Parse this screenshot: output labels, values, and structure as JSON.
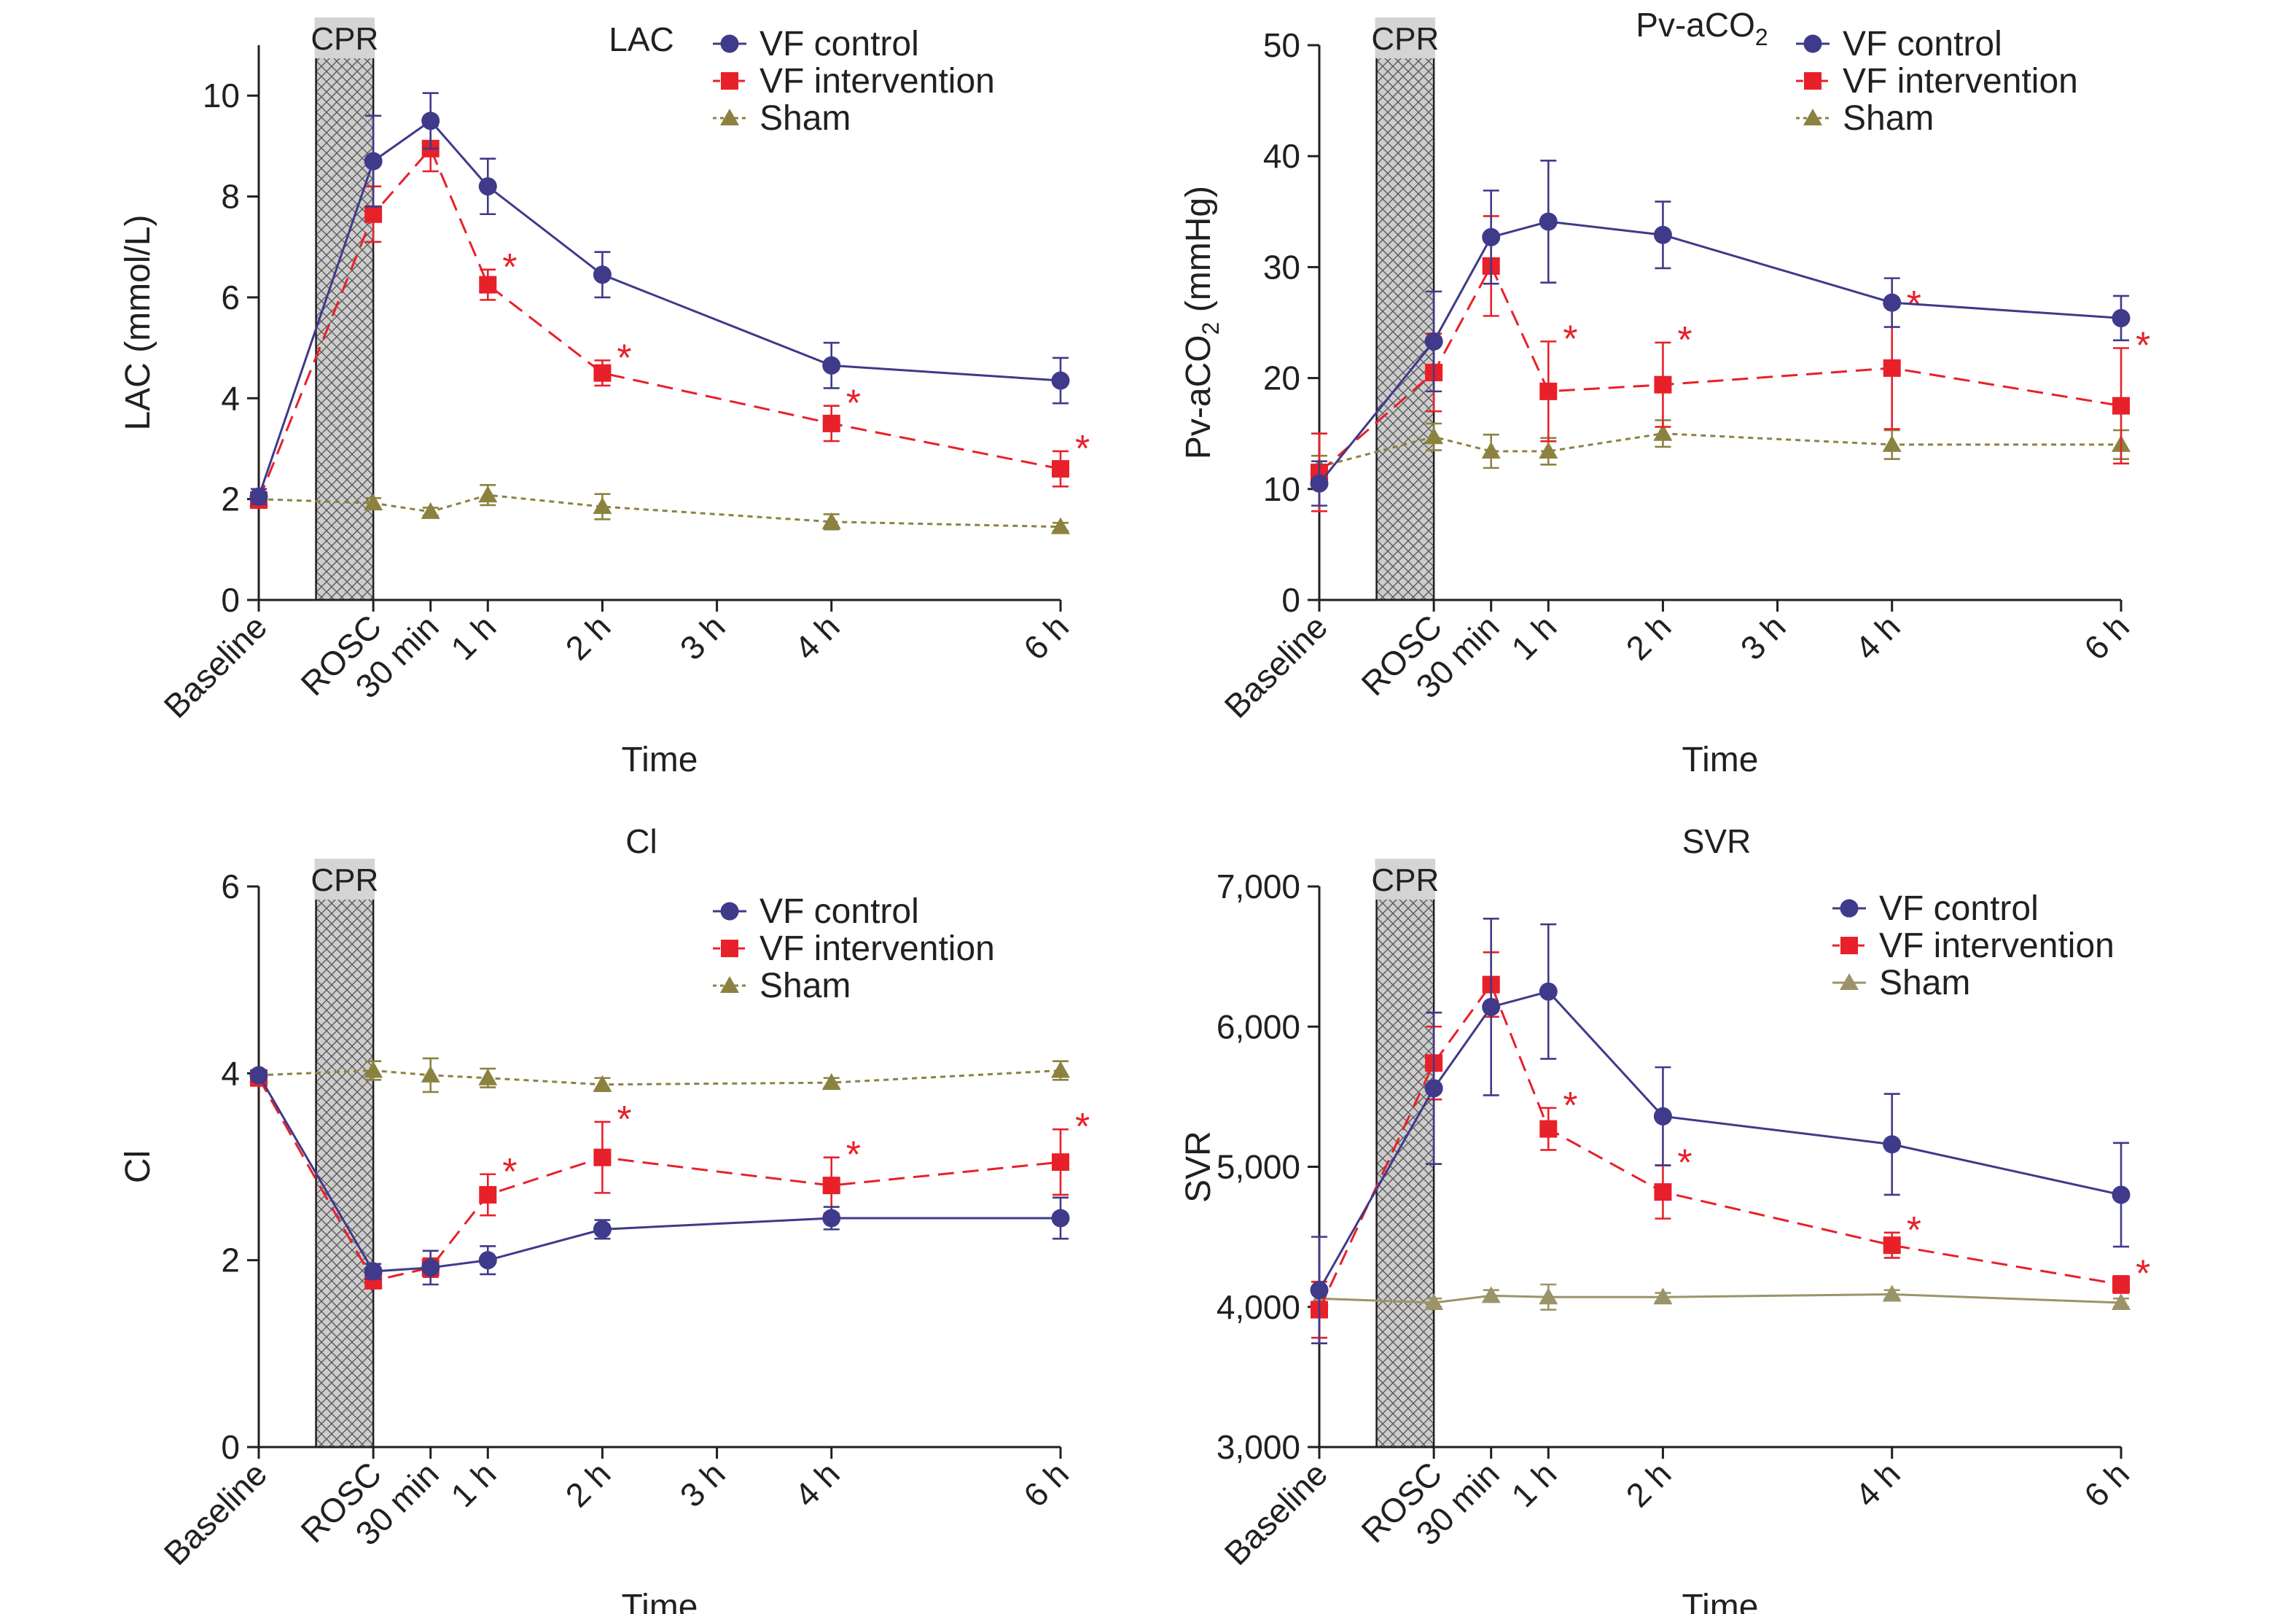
{
  "figure": {
    "colors": {
      "VF control": "#3f3a8a",
      "VF intervention": "#e8202a",
      "Sham": "#8c8240",
      "Sham_svr": "#9b946a",
      "axis": "#231f20",
      "cpr_fill": "#c8c8c8",
      "cpr_label_bg": "#d4d4d4"
    },
    "cpr_label": "CPR",
    "xlabel": "Time"
  },
  "chart_data": [
    {
      "type": "line",
      "title": "LAC",
      "ylabel": "LAC (mmol/L)",
      "xlabel": "Time",
      "ylim": [
        0,
        11
      ],
      "yticks": [
        0,
        2,
        4,
        6,
        8,
        10
      ],
      "ytick_labels": [
        "0",
        "2",
        "4",
        "6",
        "8",
        "10"
      ],
      "x_categories": [
        "Baseline",
        "ROSC",
        "30 min",
        "1 h",
        "2 h",
        "3 h",
        "4 h",
        "6 h"
      ],
      "x_positions_hours": [
        -1,
        0,
        0.5,
        1,
        2,
        3,
        4,
        6
      ],
      "cpr_period": [
        -0.5,
        0
      ],
      "legend": "top-right",
      "series": [
        {
          "name": "VF control",
          "marker": "circle",
          "line": "solid",
          "x": [
            "Baseline",
            "ROSC",
            "30 min",
            "1 h",
            "2 h",
            "4 h",
            "6 h"
          ],
          "y": [
            2.05,
            8.7,
            9.5,
            8.2,
            6.45,
            4.65,
            4.35
          ],
          "err": [
            0.15,
            0.9,
            0.55,
            0.55,
            0.45,
            0.45,
            0.45
          ]
        },
        {
          "name": "VF intervention",
          "marker": "square",
          "line": "dashed",
          "x": [
            "Baseline",
            "ROSC",
            "30 min",
            "1 h",
            "2 h",
            "4 h",
            "6 h"
          ],
          "y": [
            1.98,
            7.65,
            8.95,
            6.25,
            4.5,
            3.5,
            2.6
          ],
          "err": [
            0.12,
            0.55,
            0.45,
            0.3,
            0.25,
            0.35,
            0.35
          ],
          "significant": [
            false,
            false,
            false,
            true,
            true,
            true,
            true
          ]
        },
        {
          "name": "Sham",
          "marker": "triangle",
          "line": "dotted",
          "x": [
            "Baseline",
            "ROSC",
            "30 min",
            "1 h",
            "2 h",
            "4 h",
            "6 h"
          ],
          "y": [
            2.0,
            1.92,
            1.75,
            2.08,
            1.85,
            1.55,
            1.45
          ],
          "err": [
            0.1,
            0.1,
            0.08,
            0.2,
            0.25,
            0.15,
            0.08
          ]
        }
      ]
    },
    {
      "type": "line",
      "title": "Pv-aCO",
      "title_subscript": "2",
      "ylabel": "Pv-aCO",
      "ylabel_subscript": "2",
      "ylabel_suffix": " (mmHg)",
      "xlabel": "Time",
      "ylim": [
        0,
        50
      ],
      "yticks": [
        0,
        10,
        20,
        30,
        40,
        50
      ],
      "ytick_labels": [
        "0",
        "10",
        "20",
        "30",
        "40",
        "50"
      ],
      "x_categories": [
        "Baseline",
        "ROSC",
        "30 min",
        "1 h",
        "2 h",
        "3 h",
        "4 h",
        "6 h"
      ],
      "x_positions_hours": [
        -1,
        0,
        0.5,
        1,
        2,
        3,
        4,
        6
      ],
      "cpr_period": [
        -0.5,
        0
      ],
      "legend": "top-right",
      "series": [
        {
          "name": "VF control",
          "marker": "circle",
          "line": "solid",
          "x": [
            "Baseline",
            "ROSC",
            "30 min",
            "1 h",
            "2 h",
            "4 h",
            "6 h"
          ],
          "y": [
            10.5,
            23.3,
            32.7,
            34.1,
            32.9,
            26.8,
            25.4
          ],
          "err": [
            2.0,
            4.5,
            4.2,
            5.5,
            3.0,
            2.2,
            2.0
          ]
        },
        {
          "name": "VF intervention",
          "marker": "square",
          "line": "dashed",
          "x": [
            "Baseline",
            "ROSC",
            "30 min",
            "1 h",
            "2 h",
            "4 h",
            "6 h"
          ],
          "y": [
            11.5,
            20.5,
            30.1,
            18.8,
            19.4,
            20.9,
            17.5
          ],
          "err": [
            3.5,
            3.5,
            4.5,
            4.5,
            3.8,
            5.5,
            5.2
          ],
          "significant": [
            false,
            false,
            false,
            true,
            true,
            true,
            true
          ]
        },
        {
          "name": "Sham",
          "marker": "triangle",
          "line": "dotted",
          "x": [
            "Baseline",
            "ROSC",
            "30 min",
            "1 h",
            "2 h",
            "4 h",
            "6 h"
          ],
          "y": [
            12.0,
            14.7,
            13.4,
            13.4,
            15.0,
            14.0,
            14.0
          ],
          "err": [
            1.0,
            1.2,
            1.5,
            1.2,
            1.2,
            1.3,
            1.3
          ]
        }
      ]
    },
    {
      "type": "line",
      "title": "Cl",
      "ylabel": "Cl",
      "xlabel": "Time",
      "ylim": [
        0,
        6
      ],
      "yticks": [
        0,
        2,
        4,
        6
      ],
      "ytick_labels": [
        "0",
        "2",
        "4",
        "6"
      ],
      "x_categories": [
        "Baseline",
        "ROSC",
        "30 min",
        "1 h",
        "2 h",
        "3 h",
        "4 h",
        "6 h"
      ],
      "x_positions_hours": [
        -1,
        0,
        0.5,
        1,
        2,
        3,
        4,
        6
      ],
      "cpr_period": [
        -0.5,
        0
      ],
      "legend": "top-right",
      "series": [
        {
          "name": "VF control",
          "marker": "circle",
          "line": "solid",
          "x": [
            "Baseline",
            "ROSC",
            "30 min",
            "1 h",
            "2 h",
            "4 h",
            "6 h"
          ],
          "y": [
            3.98,
            1.88,
            1.92,
            2.0,
            2.33,
            2.45,
            2.45
          ],
          "err": [
            0.05,
            0.08,
            0.18,
            0.15,
            0.1,
            0.12,
            0.22
          ]
        },
        {
          "name": "VF intervention",
          "marker": "square",
          "line": "dashed",
          "x": [
            "Baseline",
            "ROSC",
            "30 min",
            "1 h",
            "2 h",
            "4 h",
            "6 h"
          ],
          "y": [
            3.95,
            1.78,
            1.92,
            2.7,
            3.1,
            2.8,
            3.05
          ],
          "err": [
            0.05,
            0.08,
            0.1,
            0.22,
            0.38,
            0.3,
            0.35
          ],
          "significant": [
            false,
            false,
            false,
            true,
            true,
            true,
            true
          ]
        },
        {
          "name": "Sham",
          "marker": "triangle",
          "line": "dotted",
          "x": [
            "Baseline",
            "ROSC",
            "30 min",
            "1 h",
            "2 h",
            "4 h",
            "6 h"
          ],
          "y": [
            3.98,
            4.03,
            3.98,
            3.95,
            3.88,
            3.9,
            4.03
          ],
          "err": [
            0.05,
            0.1,
            0.18,
            0.1,
            0.07,
            0.05,
            0.1
          ]
        }
      ]
    },
    {
      "type": "line",
      "title": "SVR",
      "ylabel": "SVR",
      "xlabel": "Time",
      "ylim": [
        3000,
        7000
      ],
      "yticks": [
        3000,
        4000,
        5000,
        6000,
        7000
      ],
      "ytick_labels": [
        "3,000",
        "4,000",
        "5,000",
        "6,000",
        "7,000"
      ],
      "x_categories": [
        "Baseline",
        "ROSC",
        "30 min",
        "1 h",
        "2 h",
        "4 h",
        "6 h"
      ],
      "x_positions_hours": [
        -1,
        0,
        0.5,
        1,
        2,
        4,
        6
      ],
      "cpr_period": [
        -0.5,
        0
      ],
      "legend": "top-right",
      "series": [
        {
          "name": "VF control",
          "marker": "circle",
          "line": "solid",
          "x": [
            "Baseline",
            "ROSC",
            "30 min",
            "1 h",
            "2 h",
            "4 h",
            "6 h"
          ],
          "y": [
            4120,
            5560,
            6140,
            6250,
            5360,
            5160,
            4800
          ],
          "err": [
            380,
            540,
            630,
            480,
            350,
            360,
            370
          ]
        },
        {
          "name": "VF intervention",
          "marker": "square",
          "line": "dashed",
          "x": [
            "Baseline",
            "ROSC",
            "30 min",
            "1 h",
            "2 h",
            "4 h",
            "6 h"
          ],
          "y": [
            3980,
            5740,
            6300,
            5270,
            4820,
            4440,
            4160
          ],
          "err": [
            200,
            260,
            230,
            150,
            190,
            90,
            60
          ],
          "significant": [
            false,
            false,
            false,
            true,
            true,
            true,
            true
          ]
        },
        {
          "name": "Sham",
          "marker": "triangle",
          "line": "solid",
          "x": [
            "Baseline",
            "ROSC",
            "30 min",
            "1 h",
            "2 h",
            "4 h",
            "6 h"
          ],
          "y": [
            4060,
            4030,
            4080,
            4070,
            4070,
            4090,
            4030
          ],
          "err": [
            40,
            30,
            40,
            90,
            30,
            30,
            30
          ]
        }
      ]
    }
  ]
}
